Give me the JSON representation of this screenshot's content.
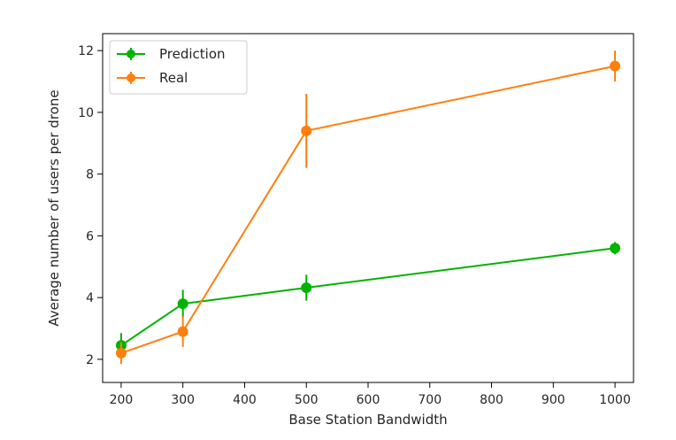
{
  "chart_data": {
    "type": "line",
    "title": "",
    "xlabel": "Base Station Bandwidth",
    "ylabel": "Average number of users per drone",
    "x": [
      200,
      300,
      500,
      1000
    ],
    "xlim": [
      170,
      1030
    ],
    "ylim": [
      1.25,
      12.55
    ],
    "xticks": [
      200,
      300,
      400,
      500,
      600,
      700,
      800,
      900,
      1000
    ],
    "yticks": [
      2,
      4,
      6,
      8,
      10,
      12
    ],
    "xtick_labels": [
      "200",
      "300",
      "400",
      "500",
      "600",
      "700",
      "800",
      "900",
      "1000"
    ],
    "ytick_labels": [
      "2",
      "4",
      "6",
      "8",
      "10",
      "12"
    ],
    "grid": false,
    "legend_position": "top-left",
    "series": [
      {
        "name": "Prediction",
        "color": "#00b300",
        "values": [
          2.45,
          3.8,
          4.32,
          5.6
        ],
        "error": [
          0.4,
          0.45,
          0.42,
          0.2
        ]
      },
      {
        "name": "Real",
        "color": "#ff7f0e",
        "values": [
          2.2,
          2.9,
          9.4,
          11.5
        ],
        "error": [
          0.35,
          0.5,
          1.2,
          0.5
        ]
      }
    ]
  }
}
